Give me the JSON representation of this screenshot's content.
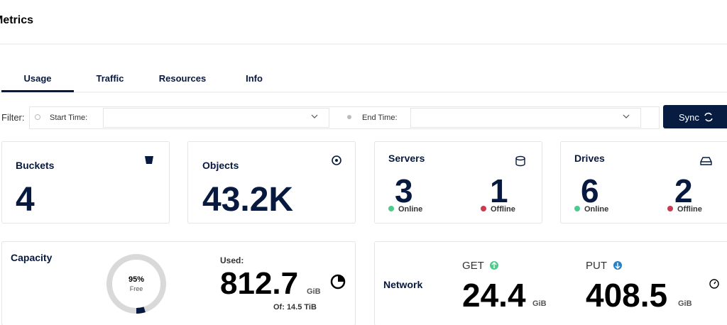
{
  "header": {
    "title": "Metrics"
  },
  "tabs": [
    "Usage",
    "Traffic",
    "Resources",
    "Info"
  ],
  "filter": {
    "label": "Filter:",
    "start_label": "Start Time:",
    "end_label": "End Time:",
    "button": "Sync"
  },
  "cards": {
    "buckets": {
      "title": "Buckets",
      "value": 4
    },
    "objects": {
      "title": "Objects",
      "value": "43.2K"
    },
    "servers": {
      "title": "Servers",
      "online": 3,
      "online_label": "Online",
      "offline": 1,
      "offline_label": "Offline"
    },
    "drives": {
      "title": "Drives",
      "online": 6,
      "online_label": "Online",
      "offline": 2,
      "offline_label": "Offline"
    }
  },
  "capacity": {
    "title": "Capacity",
    "free_percent": "95%",
    "free_label": "Free",
    "used_label": "Used:",
    "used": 812.7,
    "used_unit": "GiB",
    "total": "Of: 14.5 TiB"
  },
  "network": {
    "title": "Network",
    "get_label": "GET",
    "get": 24.4,
    "get_unit": "GiB",
    "put_label": "PUT",
    "put": 408.5,
    "put_unit": "GiB"
  }
}
